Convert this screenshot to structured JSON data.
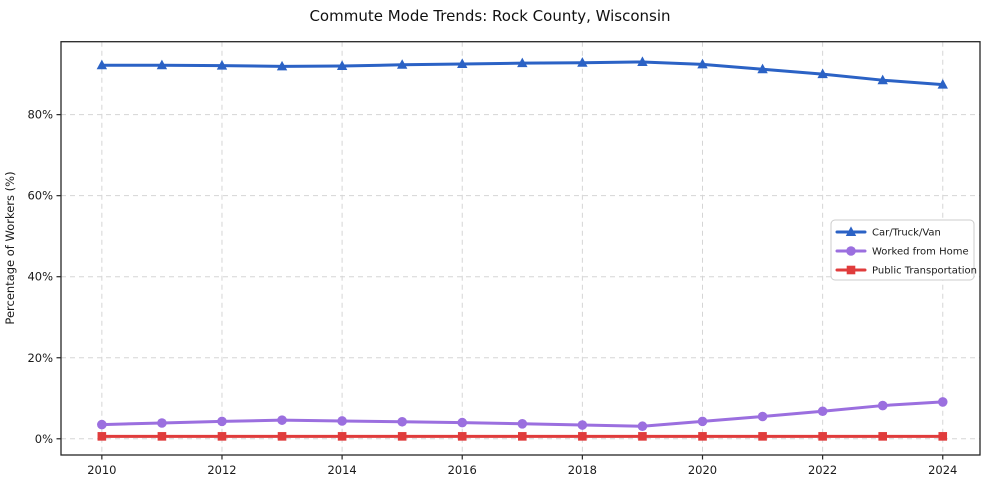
{
  "figure": {
    "title": "Commute Mode Trends: Rock County, Wisconsin"
  },
  "chart_data": {
    "type": "line",
    "title": "Commute Mode Trends: Rock County, Wisconsin",
    "xlabel": "",
    "ylabel": "Percentage of Workers (%)",
    "x": [
      2010,
      2011,
      2012,
      2013,
      2014,
      2015,
      2016,
      2017,
      2018,
      2019,
      2020,
      2021,
      2022,
      2023,
      2024
    ],
    "series": [
      {
        "name": "Car/Truck/Van",
        "color": "#2b62c5",
        "marker": "triangle",
        "values": [
          92.2,
          92.2,
          92.1,
          91.9,
          92.0,
          92.3,
          92.5,
          92.7,
          92.8,
          93.0,
          92.4,
          91.2,
          90.0,
          88.5,
          87.4
        ]
      },
      {
        "name": "Worked from Home",
        "color": "#9b6fdf",
        "marker": "circle",
        "values": [
          3.5,
          3.9,
          4.3,
          4.6,
          4.4,
          4.2,
          4.0,
          3.7,
          3.4,
          3.1,
          4.3,
          5.5,
          6.8,
          8.2,
          9.1
        ]
      },
      {
        "name": "Public Transportation",
        "color": "#e03c3c",
        "marker": "square",
        "values": [
          0.6,
          0.6,
          0.6,
          0.6,
          0.6,
          0.6,
          0.6,
          0.6,
          0.6,
          0.6,
          0.6,
          0.6,
          0.6,
          0.6,
          0.6
        ]
      }
    ],
    "xticks": [
      2010,
      2012,
      2014,
      2016,
      2018,
      2020,
      2022,
      2024
    ],
    "xtick_labels": [
      "2010",
      "2012",
      "2014",
      "2016",
      "2018",
      "2020",
      "2022",
      "2024"
    ],
    "yticks": [
      0,
      20,
      40,
      60,
      80
    ],
    "ytick_labels": [
      "0%",
      "20%",
      "40%",
      "60%",
      "80%"
    ],
    "xlim": [
      2009.32,
      2024.62
    ],
    "ylim": [
      -4,
      98
    ],
    "grid": true,
    "grid_color": "#d5d5d5",
    "axis_color": "#262626",
    "text_color": "#1a1a1a",
    "background": "#ffffff",
    "legend": {
      "position": "center-right",
      "entries": [
        "Car/Truck/Van",
        "Worked from Home",
        "Public Transportation"
      ],
      "background": "#ffffff",
      "border_color": "#cccccc"
    }
  }
}
